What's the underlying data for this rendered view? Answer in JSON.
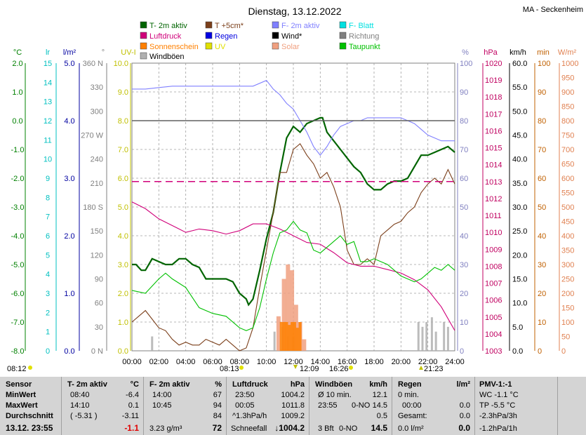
{
  "station": "MA - Seckenheim",
  "chart_data": {
    "type": "line",
    "title": "Dienstag, 13.12.2022",
    "x_ticks": [
      "00:00",
      "02:00",
      "04:00",
      "06:00",
      "08:00",
      "10:00",
      "12:00",
      "14:00",
      "16:00",
      "18:00",
      "20:00",
      "22:00",
      "24:00"
    ],
    "xlim": [
      0,
      24
    ],
    "legend": [
      {
        "name": "T- 2m aktiv",
        "color": "#006400"
      },
      {
        "name": "T +5cm*",
        "color": "#7b3f1a"
      },
      {
        "name": "F- 2m aktiv",
        "color": "#8080ff"
      },
      {
        "name": "F- Blatt",
        "color": "#00e0e0"
      },
      {
        "name": "Luftdruck",
        "color": "#d0007a"
      },
      {
        "name": "Regen",
        "color": "#0000e0"
      },
      {
        "name": "Wind*",
        "color": "#000000"
      },
      {
        "name": "Richtung",
        "color": "#808080"
      },
      {
        "name": "Sonnenschein",
        "color": "#ff8000"
      },
      {
        "name": "UV",
        "color": "#e0e000"
      },
      {
        "name": "Solar",
        "color": "#f0a080"
      },
      {
        "name": "Taupunkt",
        "color": "#00c000"
      },
      {
        "name": "Windböen",
        "color": "#b0b0b0"
      }
    ],
    "axes": {
      "temp": {
        "label": "°C",
        "ticks": [
          "2.0",
          "1.0",
          "0.0",
          "-1.0",
          "-2.0",
          "-3.0",
          "-4.0",
          "-5.0",
          "-6.0",
          "-7.0",
          "-8.0"
        ],
        "min": -8,
        "max": 2,
        "color": "#008000"
      },
      "leaf": {
        "label": "lr",
        "ticks": [
          "15",
          "14",
          "13",
          "12",
          "11",
          "10",
          "9",
          "8",
          "7",
          "6",
          "5",
          "4",
          "3",
          "2",
          "1",
          "0"
        ],
        "color": "#00c0c0"
      },
      "rain": {
        "label": "l/m²",
        "ticks": [
          "5.0",
          "4.0",
          "3.0",
          "2.0",
          "1.0",
          "0.0"
        ],
        "color": "#0000a0"
      },
      "dir": {
        "label": "°",
        "ticks": [
          "360 N",
          "330",
          "300",
          "270 W",
          "240",
          "210",
          "180 S",
          "150",
          "120",
          "90",
          "60",
          "30",
          "0 N"
        ],
        "color": "#808080"
      },
      "uv": {
        "label": "UV-I",
        "ticks": [
          "10.0",
          "9.0",
          "8.0",
          "7.0",
          "6.0",
          "5.0",
          "4.0",
          "3.0",
          "2.0",
          "1.0",
          "0.0"
        ],
        "color": "#c0c000"
      },
      "hum": {
        "label": "%",
        "ticks": [
          "100",
          "90",
          "80",
          "70",
          "60",
          "50",
          "40",
          "30",
          "20",
          "10",
          "0"
        ],
        "min": 0,
        "max": 100,
        "color": "#8080c0"
      },
      "press": {
        "label": "hPa",
        "ticks": [
          "1020",
          "1019",
          "1018",
          "1017",
          "1016",
          "1015",
          "1014",
          "1013",
          "1012",
          "1011",
          "1010",
          "1009",
          "1008",
          "1007",
          "1006",
          "1005",
          "1004",
          "1003"
        ],
        "min": 1003,
        "max": 1020,
        "color": "#c00060"
      },
      "wind": {
        "label": "km/h",
        "ticks": [
          "60.0",
          "55.0",
          "50.0",
          "45.0",
          "40.0",
          "35.0",
          "30.0",
          "25.0",
          "20.0",
          "15.0",
          "10.0",
          "5.0",
          "0.0"
        ],
        "min": 0,
        "max": 60,
        "color": "#000000"
      },
      "sun": {
        "label": "min",
        "ticks": [
          "100",
          "90",
          "80",
          "70",
          "60",
          "50",
          "40",
          "30",
          "20",
          "10",
          "0"
        ],
        "color": "#c06000"
      },
      "solar": {
        "label": "W/m²",
        "ticks": [
          "1000",
          "950",
          "900",
          "850",
          "800",
          "750",
          "700",
          "650",
          "600",
          "550",
          "500",
          "450",
          "400",
          "350",
          "300",
          "250",
          "200",
          "150",
          "100",
          "50",
          "0"
        ],
        "color": "#e08050"
      }
    },
    "sun_events": {
      "sunrise": "08:12",
      "sunrise_chart": "08:13",
      "min_temp": "12:09",
      "max_time": "16:26",
      "sunset": "21:23"
    },
    "series": [
      {
        "name": "T- 2m aktiv",
        "axis": "temp",
        "color": "#006400",
        "x": [
          0,
          0.3,
          0.7,
          1,
          1.5,
          2,
          2.5,
          3,
          3.5,
          4,
          4.5,
          5,
          5.5,
          6,
          6.5,
          7,
          7.5,
          8,
          8.5,
          8.67,
          9,
          9.5,
          10,
          10.5,
          11,
          11.5,
          12,
          12.5,
          13,
          13.5,
          14,
          14.17,
          14.5,
          15,
          15.5,
          16,
          16.5,
          17,
          17.5,
          18,
          18.5,
          19,
          19.5,
          20,
          20.5,
          21,
          21.5,
          22,
          22.5,
          23,
          23.5,
          24
        ],
        "y": [
          -5.0,
          -5.0,
          -5.2,
          -5.2,
          -4.8,
          -4.9,
          -5.0,
          -5.0,
          -4.8,
          -4.8,
          -5.0,
          -5.1,
          -5.5,
          -5.5,
          -5.5,
          -5.5,
          -5.6,
          -6.0,
          -6.2,
          -6.4,
          -6.2,
          -5.2,
          -4.1,
          -3.2,
          -1.8,
          -0.6,
          -0.2,
          -0.4,
          -0.1,
          0.0,
          0.1,
          0.1,
          -0.4,
          -0.7,
          -1.0,
          -1.3,
          -1.6,
          -1.8,
          -2.2,
          -2.4,
          -2.4,
          -2.2,
          -2.1,
          -2.1,
          -2.0,
          -1.6,
          -1.2,
          -1.2,
          -1.1,
          -1.0,
          -0.9,
          -1.1
        ]
      },
      {
        "name": "T +5cm*",
        "axis": "temp",
        "color": "#7b3f1a",
        "x": [
          0,
          0.5,
          1,
          1.5,
          2,
          2.5,
          3,
          3.5,
          4,
          4.5,
          5,
          5.5,
          6,
          6.5,
          7,
          7.5,
          8,
          8.5,
          9,
          9.5,
          10,
          10.5,
          11,
          11.5,
          12,
          12.5,
          13,
          13.5,
          14,
          14.5,
          15,
          15.5,
          16,
          16.5,
          17,
          17.5,
          18,
          18.5,
          19,
          19.5,
          20,
          20.5,
          21,
          21.5,
          22,
          22.5,
          23,
          23.5,
          24
        ],
        "y": [
          -7.0,
          -6.8,
          -6.6,
          -6.9,
          -7.2,
          -7.3,
          -7.6,
          -7.8,
          -7.7,
          -7.8,
          -7.8,
          -7.6,
          -7.7,
          -7.8,
          -7.6,
          -7.8,
          -8.0,
          -7.9,
          -7.2,
          -5.8,
          -4.5,
          -3.2,
          -1.8,
          -1.8,
          -1.0,
          -0.8,
          -1.2,
          -1.5,
          -2.0,
          -1.8,
          -2.3,
          -3.0,
          -4.5,
          -5.0,
          -5.0,
          -4.8,
          -5.0,
          -4.0,
          -3.8,
          -3.6,
          -3.5,
          -3.2,
          -3.0,
          -2.5,
          -2.2,
          -2.0,
          -2.2,
          -1.7,
          -2.2
        ]
      },
      {
        "name": "F- 2m aktiv",
        "axis": "hum",
        "color": "#8080ff",
        "x": [
          0,
          1,
          2,
          3,
          4,
          5,
          6,
          7,
          8,
          9,
          10,
          10.5,
          11,
          11.5,
          12,
          12.5,
          13,
          13.5,
          14,
          14.5,
          15,
          15.5,
          16,
          16.5,
          17,
          17.5,
          18,
          18.5,
          19,
          19.5,
          20,
          20.5,
          21,
          21.5,
          22,
          22.5,
          23,
          23.5,
          24
        ],
        "y": [
          91,
          91,
          91.5,
          92,
          92,
          92,
          92,
          92,
          92,
          92,
          94,
          91,
          89,
          86,
          84,
          80,
          76,
          71,
          68,
          71,
          75,
          78,
          79,
          80,
          80,
          81,
          81,
          81,
          81,
          81,
          81,
          80,
          79,
          77,
          75,
          74,
          73,
          73,
          73
        ]
      },
      {
        "name": "Luftdruck",
        "axis": "press",
        "color": "#d0007a",
        "x": [
          0,
          1,
          2,
          3,
          4,
          5,
          6,
          7,
          8,
          9,
          10,
          11,
          12,
          13,
          14,
          15,
          16,
          17,
          18,
          19,
          20,
          21,
          22,
          23,
          24
        ],
        "y": [
          1011.8,
          1011.4,
          1010.8,
          1010.4,
          1010.0,
          1010.2,
          1010.1,
          1009.9,
          1010.1,
          1010.5,
          1010.5,
          1010.2,
          1009.8,
          1009.4,
          1009.3,
          1008.8,
          1008.2,
          1008.0,
          1008.0,
          1007.8,
          1007.6,
          1007.2,
          1006.6,
          1005.6,
          1004.2
        ]
      },
      {
        "name": "Taupunkt",
        "axis": "temp",
        "color": "#00c000",
        "x": [
          0,
          1,
          2,
          2.5,
          3,
          4,
          5,
          6,
          7,
          8,
          8.5,
          9,
          9.5,
          10,
          10.5,
          11,
          11.5,
          12,
          12.5,
          13,
          13.5,
          14,
          14.5,
          15,
          15.5,
          16,
          16.5,
          17,
          17.5,
          18,
          18.5,
          19,
          19.5,
          20,
          20.5,
          21,
          21.5,
          22,
          22.5,
          23,
          23.5,
          24
        ],
        "y": [
          -5.9,
          -6.0,
          -5.5,
          -5.3,
          -5.5,
          -5.8,
          -6.5,
          -6.7,
          -6.8,
          -7.2,
          -7.3,
          -7.2,
          -6.5,
          -5.5,
          -4.6,
          -3.9,
          -3.8,
          -3.5,
          -3.8,
          -3.9,
          -4.5,
          -4.6,
          -4.4,
          -4.2,
          -4.0,
          -4.3,
          -4.2,
          -4.9,
          -4.9,
          -4.8,
          -4.9,
          -5.0,
          -5.2,
          -5.4,
          -5.5,
          -5.6,
          -5.5,
          -5.3,
          -5.1,
          -5.2,
          -5.0,
          -5.2
        ]
      },
      {
        "name": "Referenz 0°C",
        "axis": "temp",
        "color": "#606060",
        "x": [
          0,
          24
        ],
        "y": [
          0,
          0
        ]
      },
      {
        "name": "Referenz 1013 hPa",
        "axis": "press",
        "color": "#d0007a",
        "dashed": true,
        "x": [
          0,
          24
        ],
        "y": [
          1013,
          1013
        ]
      }
    ],
    "sunshine_bars": {
      "axis": "uv",
      "color": "#ff8000",
      "x": [
        11.1,
        11.3,
        11.5,
        11.7,
        11.9,
        12.1,
        12.3,
        12.5
      ],
      "values": [
        1.0,
        1.0,
        1.0,
        0.9,
        1.0,
        1.0,
        0.8,
        1.0
      ]
    },
    "solar_bars": {
      "axis": "uv",
      "color": "#f0a080",
      "x": [
        10.9,
        11.3,
        11.6,
        11.9,
        12.2,
        12.5,
        12.8
      ],
      "values": [
        1.2,
        2.5,
        3.0,
        2.8,
        1.6,
        1.0,
        0.4
      ]
    },
    "gust_bars": {
      "axis": "wind",
      "color": "#b0b0b0",
      "x": [
        1.5,
        10.6,
        11.2,
        11.6,
        12.0,
        21.3,
        21.6,
        21.9,
        22.3,
        22.6,
        23.2,
        23.5
      ],
      "values": [
        3,
        4,
        5,
        3,
        3,
        6,
        5,
        6,
        7,
        4,
        6,
        5
      ]
    }
  },
  "summary": {
    "labels": {
      "sensor": "Sensor",
      "min": "MinWert",
      "max": "MaxWert",
      "avg": "Durchschnitt",
      "now": "13.12. 23:55"
    },
    "temp": {
      "title": "T- 2m aktiv",
      "unit": "°C",
      "min_time": "08:40",
      "min_val": "-6.4",
      "max_time": "14:10",
      "max_val": "0.1",
      "avg_extra": "( -5.31 )",
      "avg_val": "-3.11",
      "now_val": "-1.1"
    },
    "hum": {
      "title": "F- 2m aktiv",
      "unit": "%",
      "min_time": "14:00",
      "min_val": "67",
      "max_time": "10:45",
      "max_val": "94",
      "avg_val": "84",
      "abs": "3.23 g/m³",
      "now_val": "72"
    },
    "press": {
      "title": "Luftdruck",
      "unit": "hPa",
      "min_time": "23:50",
      "min_val": "1004.2",
      "max_time": "00:05",
      "max_val": "1011.8",
      "trend": "^1.3hPa/h",
      "trend_val": "1009.2",
      "snow": "Schneefall",
      "now_val": "↓1004.2"
    },
    "gust": {
      "title": "Windböen",
      "unit": "km/h",
      "r1a": "Ø 10 min.",
      "r1b": "12.1",
      "r2a": "23:55",
      "r2b": "0-NO",
      "r2c": "14.5",
      "r3b": "0.5",
      "r4a": "3 Bft",
      "r4b": "0-NO",
      "r4c": "14.5"
    },
    "rain": {
      "title": "Regen",
      "unit": "l/m²",
      "r1a": "0 min.",
      "r2a": "00:00",
      "r2b": "0.0",
      "r3a": "Gesamt:",
      "r3b": "0.0",
      "r4a": "0.0 l/m²",
      "r4b": "0.0"
    },
    "pmv": {
      "title": "PMV-1:-1",
      "r1": "WC -1.1 °C",
      "r2": "TP -5.5 °C",
      "r3": "-2.3hPa/3h",
      "r4": "-1.2hPa/1h"
    }
  }
}
